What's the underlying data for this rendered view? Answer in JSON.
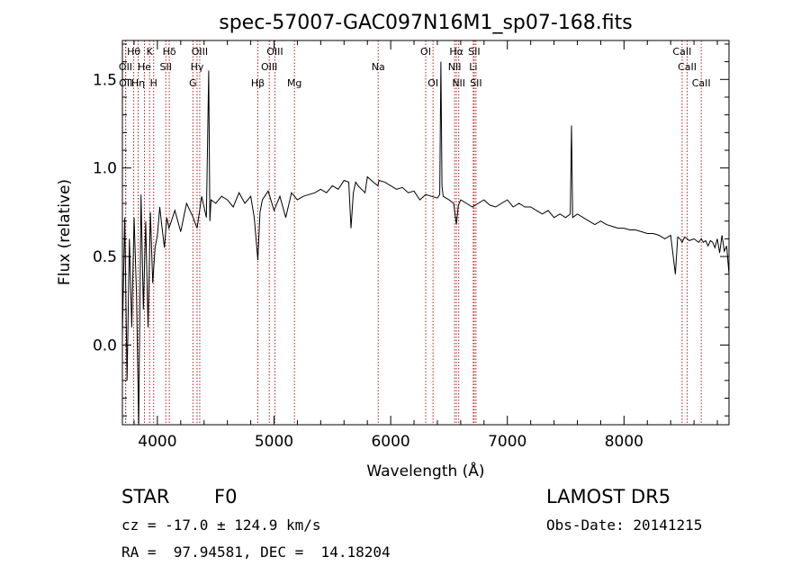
{
  "chart_data": {
    "type": "line",
    "title": "spec-57007-GAC097N16M1_sp07-168.fits",
    "xlabel": "Wavelength (Å)",
    "ylabel": "Flux (relative)",
    "xlim": [
      3700,
      8900
    ],
    "ylim": [
      -0.45,
      1.72
    ],
    "x_ticks": [
      4000,
      5000,
      6000,
      7000,
      8000
    ],
    "y_ticks": [
      0.0,
      0.5,
      1.0,
      1.5
    ],
    "y_tick_labels": [
      "0.0",
      "0.5",
      "1.0",
      "1.5"
    ],
    "grid": false,
    "line_color": "#000000",
    "marker_color": "#b02020",
    "series": [
      {
        "x": [
          3700,
          3720,
          3740,
          3760,
          3780,
          3800,
          3820,
          3840,
          3860,
          3880,
          3900,
          3920,
          3940,
          3960,
          3980,
          4000,
          4020,
          4040,
          4060,
          4080,
          4100,
          4150,
          4200,
          4250,
          4300,
          4340,
          4380,
          4420,
          4440,
          4450,
          4460,
          4500,
          4550,
          4600,
          4650,
          4700,
          4750,
          4800,
          4830,
          4861,
          4880,
          4900,
          4950,
          5000,
          5050,
          5100,
          5150,
          5200,
          5250,
          5300,
          5350,
          5400,
          5450,
          5500,
          5550,
          5600,
          5640,
          5660,
          5680,
          5700,
          5720,
          5750,
          5780,
          5800,
          5850,
          5890,
          5900,
          5950,
          6000,
          6050,
          6100,
          6150,
          6200,
          6250,
          6300,
          6350,
          6400,
          6420,
          6430,
          6440,
          6450,
          6500,
          6540,
          6563,
          6580,
          6600,
          6650,
          6700,
          6750,
          6800,
          6850,
          6900,
          6950,
          7000,
          7050,
          7100,
          7150,
          7200,
          7250,
          7300,
          7350,
          7400,
          7450,
          7500,
          7540,
          7550,
          7560,
          7600,
          7650,
          7700,
          7750,
          7800,
          7850,
          7900,
          7950,
          8000,
          8050,
          8100,
          8150,
          8200,
          8250,
          8300,
          8350,
          8400,
          8440,
          8460,
          8480,
          8498,
          8520,
          8542,
          8560,
          8600,
          8640,
          8662,
          8680,
          8700,
          8720,
          8740,
          8760,
          8780,
          8800,
          8820,
          8840,
          8860,
          8880,
          8900
        ],
        "y": [
          0.05,
          0.72,
          -0.2,
          0.6,
          0.1,
          0.72,
          0.3,
          -0.45,
          0.85,
          0.2,
          0.7,
          0.1,
          0.75,
          0.35,
          0.55,
          0.62,
          0.78,
          0.66,
          0.55,
          0.72,
          0.66,
          0.76,
          0.64,
          0.8,
          0.73,
          0.66,
          0.84,
          0.72,
          1.55,
          0.7,
          0.82,
          0.8,
          0.84,
          0.82,
          0.78,
          0.86,
          0.8,
          0.84,
          0.72,
          0.48,
          0.75,
          0.82,
          0.87,
          0.76,
          0.84,
          0.72,
          0.86,
          0.82,
          0.84,
          0.85,
          0.86,
          0.88,
          0.86,
          0.9,
          0.88,
          0.93,
          0.92,
          0.66,
          0.86,
          0.92,
          0.9,
          0.88,
          0.86,
          0.95,
          0.92,
          0.9,
          0.93,
          0.92,
          0.9,
          0.88,
          0.89,
          0.86,
          0.87,
          0.82,
          0.85,
          0.84,
          0.83,
          0.85,
          1.6,
          0.9,
          0.84,
          0.82,
          0.8,
          0.68,
          0.79,
          0.82,
          0.8,
          0.78,
          0.8,
          0.82,
          0.79,
          0.78,
          0.8,
          0.82,
          0.78,
          0.8,
          0.78,
          0.78,
          0.76,
          0.74,
          0.76,
          0.72,
          0.74,
          0.72,
          0.74,
          1.24,
          0.72,
          0.74,
          0.72,
          0.7,
          0.68,
          0.7,
          0.68,
          0.67,
          0.66,
          0.66,
          0.65,
          0.65,
          0.64,
          0.63,
          0.63,
          0.62,
          0.6,
          0.62,
          0.4,
          0.61,
          0.6,
          0.58,
          0.61,
          0.6,
          0.59,
          0.6,
          0.58,
          0.6,
          0.58,
          0.59,
          0.56,
          0.59,
          0.58,
          0.55,
          0.6,
          0.52,
          0.62,
          0.53,
          0.56,
          0.4
        ]
      }
    ],
    "line_labels": [
      {
        "text": "Hθ",
        "x": 3797,
        "row": 0
      },
      {
        "text": "K",
        "x": 3933,
        "row": 0
      },
      {
        "text": "Hδ",
        "x": 4102,
        "row": 0
      },
      {
        "text": "OIII",
        "x": 4363,
        "row": 0
      },
      {
        "text": "OIII",
        "x": 5007,
        "row": 0
      },
      {
        "text": "OI",
        "x": 6300,
        "row": 0
      },
      {
        "text": "Hα",
        "x": 6563,
        "row": 0
      },
      {
        "text": "SII",
        "x": 6716,
        "row": 0
      },
      {
        "text": "CaII",
        "x": 8498,
        "row": 0
      },
      {
        "text": "OII",
        "x": 3727,
        "row": 1
      },
      {
        "text": "He",
        "x": 3889,
        "row": 1
      },
      {
        "text": "SII",
        "x": 4072,
        "row": 1
      },
      {
        "text": "Hγ",
        "x": 4340,
        "row": 1
      },
      {
        "text": "OIII",
        "x": 4959,
        "row": 1
      },
      {
        "text": "Na",
        "x": 5893,
        "row": 1
      },
      {
        "text": "NII",
        "x": 6548,
        "row": 1
      },
      {
        "text": "Li",
        "x": 6708,
        "row": 1
      },
      {
        "text": "CaII",
        "x": 8542,
        "row": 1
      },
      {
        "text": "OII",
        "x": 3729,
        "row": 2
      },
      {
        "text": "Hη",
        "x": 3835,
        "row": 2
      },
      {
        "text": "H",
        "x": 3968,
        "row": 2
      },
      {
        "text": "G",
        "x": 4305,
        "row": 2
      },
      {
        "text": "Hβ",
        "x": 4861,
        "row": 2
      },
      {
        "text": "Mg",
        "x": 5175,
        "row": 2
      },
      {
        "text": "OI",
        "x": 6363,
        "row": 2
      },
      {
        "text": "NII",
        "x": 6583,
        "row": 2
      },
      {
        "text": "SII",
        "x": 6731,
        "row": 2
      },
      {
        "text": "CaII",
        "x": 8662,
        "row": 2
      }
    ]
  },
  "info": {
    "object_class": "STAR",
    "subclass": "F0",
    "survey": "LAMOST DR5",
    "redshift": "cz = -17.0 ± 124.9 km/s",
    "obs_date": "Obs-Date: 20141215",
    "coords": "RA =  97.94581, DEC =  14.18204"
  }
}
